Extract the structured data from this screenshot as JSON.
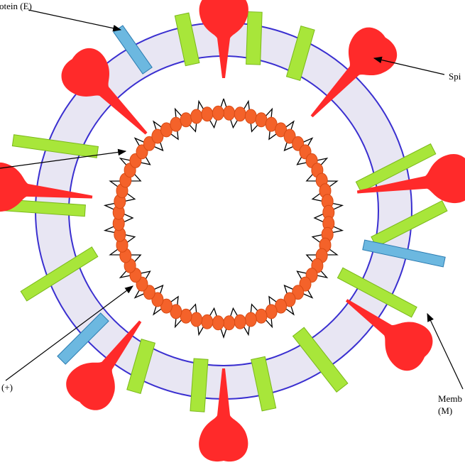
{
  "labels": {
    "envelope": "otein (E)",
    "spike": "Spi",
    "rna": "(+)",
    "membrane_line1": "Memb",
    "membrane_line2": "(M)"
  },
  "colors": {
    "envelope_band": "#e8e6f3",
    "envelope_border": "#3a2fd0",
    "spike": "#ff2a2a",
    "membrane_protein": "#a8e63a",
    "envelope_protein": "#6cb8e0",
    "nucleocapsid": "#f4622a",
    "rna": "#000000"
  }
}
